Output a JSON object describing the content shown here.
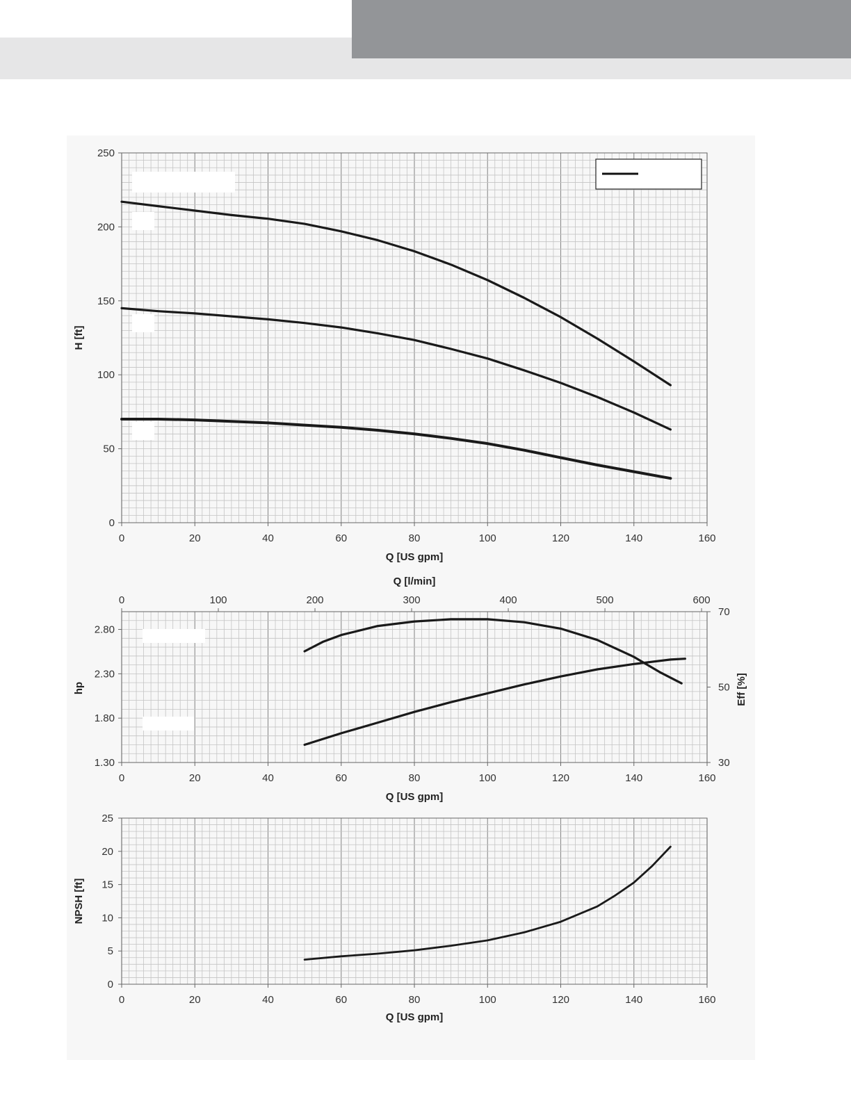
{
  "chart_data": [
    {
      "type": "line",
      "xlabel": "Q [US gpm]",
      "ylabel": "H [ft]",
      "xlim": [
        0,
        160
      ],
      "ylim": [
        0,
        250
      ],
      "xticks": [
        0,
        20,
        40,
        60,
        80,
        100,
        120,
        140,
        160
      ],
      "yticks": [
        0,
        50,
        100,
        150,
        200,
        250
      ],
      "grid": true,
      "legend": "top-right",
      "series": [
        {
          "x": [
            0,
            10,
            20,
            30,
            40,
            50,
            60,
            70,
            80,
            90,
            100,
            110,
            120,
            130,
            140,
            150
          ],
          "y": [
            217,
            214,
            211,
            208,
            205.5,
            202,
            197,
            191,
            183.5,
            174.5,
            164,
            152,
            139,
            124.5,
            109,
            93
          ]
        },
        {
          "x": [
            0,
            10,
            20,
            30,
            40,
            50,
            60,
            70,
            80,
            90,
            100,
            110,
            120,
            130,
            140,
            150
          ],
          "y": [
            145,
            143,
            141.5,
            139.5,
            137.5,
            135,
            132,
            128,
            123.5,
            117.5,
            111,
            103,
            94.5,
            85,
            74.5,
            63
          ]
        },
        {
          "x": [
            0,
            10,
            20,
            30,
            40,
            50,
            60,
            70,
            80,
            90,
            100,
            110,
            120,
            130,
            140,
            150
          ],
          "y": [
            70,
            70,
            69.5,
            68.5,
            67.5,
            66,
            64.5,
            62.5,
            60,
            57,
            53.5,
            49,
            44,
            39,
            34.5,
            30
          ]
        }
      ]
    },
    {
      "type": "line",
      "xlabel": "Q [US gpm]",
      "x2label": "Q [l/min]",
      "ylabel": "hp",
      "y2label": "Eff  [%]",
      "xlim": [
        0,
        160
      ],
      "x2lim": [
        0,
        605.7
      ],
      "ylim": [
        1.3,
        3.0
      ],
      "y2lim": [
        30,
        70
      ],
      "xticks": [
        0,
        20,
        40,
        60,
        80,
        100,
        120,
        140,
        160
      ],
      "x2ticks": [
        0,
        100,
        200,
        300,
        400,
        500,
        600
      ],
      "yticks": [
        "1.30",
        "1.80",
        "2.30",
        "2.80"
      ],
      "y2ticks": [
        30,
        50,
        70
      ],
      "grid": true,
      "series": [
        {
          "axis": "y",
          "x": [
            50,
            60,
            70,
            80,
            90,
            100,
            110,
            120,
            130,
            140,
            150,
            154
          ],
          "y": [
            1.5,
            1.63,
            1.75,
            1.87,
            1.98,
            2.08,
            2.18,
            2.27,
            2.35,
            2.41,
            2.46,
            2.47
          ]
        },
        {
          "axis": "y2",
          "x": [
            50,
            55,
            60,
            70,
            80,
            90,
            100,
            110,
            120,
            130,
            140,
            147,
            153
          ],
          "y": [
            59.5,
            62,
            63.8,
            66.2,
            67.4,
            68,
            68,
            67.2,
            65.5,
            62.5,
            58,
            54,
            51
          ]
        }
      ]
    },
    {
      "type": "line",
      "xlabel": "Q [US gpm]",
      "ylabel": "NPSH [ft]",
      "xlim": [
        0,
        160
      ],
      "ylim": [
        0,
        25
      ],
      "xticks": [
        0,
        20,
        40,
        60,
        80,
        100,
        120,
        140,
        160
      ],
      "yticks": [
        0,
        5,
        10,
        15,
        20,
        25
      ],
      "grid": true,
      "series": [
        {
          "x": [
            50,
            60,
            70,
            80,
            90,
            100,
            110,
            120,
            130,
            135,
            140,
            145,
            150
          ],
          "y": [
            3.7,
            4.2,
            4.6,
            5.1,
            5.8,
            6.6,
            7.8,
            9.4,
            11.7,
            13.4,
            15.3,
            17.8,
            20.7
          ]
        }
      ]
    }
  ]
}
